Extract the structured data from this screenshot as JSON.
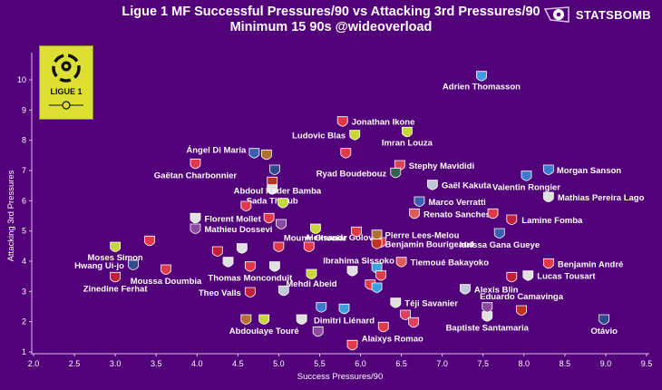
{
  "header": {
    "title_line1": "Ligue 1 MF Successful Pressures/90 vs Attacking 3rd Pressures/90",
    "title_line2": "Minimum 15 90s @wideoverload",
    "brand": "STATSBOMB",
    "league_logo_text": "LIGUE 1"
  },
  "colors": {
    "background": "#520079",
    "axis": "#d9c6ea",
    "text": "#ffffff",
    "logo_yellow": "#dde033"
  },
  "chart_data": {
    "type": "scatter",
    "title": "Ligue 1 MF Successful Pressures/90 vs Attacking 3rd Pressures/90",
    "subtitle": "Minimum 15 90s @wideoverload",
    "xlabel": "Success Pressures/90",
    "ylabel": "Attacking 3rd Pressures",
    "xlim": [
      2.0,
      9.5
    ],
    "ylim": [
      1,
      10.5
    ],
    "xticks": [
      "2.0",
      "2.5",
      "3.0",
      "3.5",
      "4.0",
      "4.5",
      "5.0",
      "5.5",
      "6.0",
      "6.5",
      "7.0",
      "7.5",
      "8.0",
      "8.5",
      "9.0",
      "9.5"
    ],
    "yticks": [
      "1",
      "2",
      "3",
      "4",
      "5",
      "6",
      "7",
      "8",
      "9",
      "10"
    ],
    "grid": false,
    "points": [
      {
        "name": "Adrien Thomasson",
        "x": 7.48,
        "y": 10.1,
        "color": "#3aa0e0",
        "labeled": true
      },
      {
        "name": "Jonathan Ikone",
        "x": 5.78,
        "y": 8.6,
        "color": "#e03a4a",
        "labeled": true
      },
      {
        "name": "Ludovic Blas",
        "x": 5.93,
        "y": 8.15,
        "color": "#c8d63a",
        "labeled": true
      },
      {
        "name": "Imran Louza",
        "x": 6.57,
        "y": 8.25,
        "color": "#c8d63a",
        "labeled": true
      },
      {
        "name": "",
        "x": 5.82,
        "y": 7.55,
        "color": "#e03a4a",
        "labeled": false
      },
      {
        "name": "Stephy Mavididi",
        "x": 6.48,
        "y": 7.15,
        "color": "#e0405a",
        "labeled": true
      },
      {
        "name": "Ryad Boudebouz",
        "x": 6.43,
        "y": 6.9,
        "color": "#3a6050",
        "labeled": true
      },
      {
        "name": "Ángel Di María",
        "x": 4.7,
        "y": 7.55,
        "color": "#3a5fb0",
        "labeled": true
      },
      {
        "name": "",
        "x": 4.85,
        "y": 7.5,
        "color": "#b07030",
        "labeled": false
      },
      {
        "name": "Gaëtan Charbonnier",
        "x": 3.98,
        "y": 7.2,
        "color": "#e03a4a",
        "labeled": true
      },
      {
        "name": "",
        "x": 4.95,
        "y": 7.0,
        "color": "#304a90",
        "labeled": false
      },
      {
        "name": "",
        "x": 4.92,
        "y": 6.6,
        "color": "#c03020",
        "labeled": false
      },
      {
        "name": "Sada Thioub",
        "x": 4.92,
        "y": 6.35,
        "color": "#e0e0e0",
        "labeled": true
      },
      {
        "name": "Gaël Kakuta",
        "x": 6.88,
        "y": 6.5,
        "color": "#c0c8d8",
        "labeled": true
      },
      {
        "name": "Morgan Sanson",
        "x": 8.3,
        "y": 7.0,
        "color": "#3a7ad0",
        "labeled": true
      },
      {
        "name": "Valentin Rongier",
        "x": 8.03,
        "y": 6.8,
        "color": "#3a7ad0",
        "labeled": true
      },
      {
        "name": "Mathias Pereira Lago",
        "x": 8.3,
        "y": 6.1,
        "color": "#e0e0e0",
        "labeled": true
      },
      {
        "name": "Marco Verratti",
        "x": 6.72,
        "y": 5.95,
        "color": "#3a5fb0",
        "labeled": true
      },
      {
        "name": "Renato Sanches",
        "x": 6.66,
        "y": 5.55,
        "color": "#e05a5a",
        "labeled": true
      },
      {
        "name": "",
        "x": 7.62,
        "y": 5.55,
        "color": "#e03a4a",
        "labeled": false
      },
      {
        "name": "Lamine Fomba",
        "x": 7.85,
        "y": 5.35,
        "color": "#c0203a",
        "labeled": true
      },
      {
        "name": "Idrissa Gana Gueye",
        "x": 7.7,
        "y": 4.9,
        "color": "#3a5fb0",
        "labeled": true
      },
      {
        "name": "Aleksandr Golovin",
        "x": 6.25,
        "y": 4.6,
        "color": "#e03a4a",
        "labeled": true
      },
      {
        "name": "Pierre Lees-Melou",
        "x": 6.2,
        "y": 4.85,
        "color": "#b07030",
        "labeled": true
      },
      {
        "name": "Benjamin Bourigeaud",
        "x": 6.2,
        "y": 4.55,
        "color": "#c03020",
        "labeled": true
      },
      {
        "name": "Abdoul Kader Bamba",
        "x": 5.05,
        "y": 5.9,
        "color": "#c8d63a",
        "labeled": true
      },
      {
        "name": "",
        "x": 4.6,
        "y": 5.8,
        "color": "#e03a4a",
        "labeled": false
      },
      {
        "name": "",
        "x": 4.88,
        "y": 5.4,
        "color": "#e03a4a",
        "labeled": false
      },
      {
        "name": "",
        "x": 5.03,
        "y": 5.2,
        "color": "#8a4aa0",
        "labeled": false
      },
      {
        "name": "",
        "x": 5.45,
        "y": 5.05,
        "color": "#c8d63a",
        "labeled": false
      },
      {
        "name": "Florent Mollet",
        "x": 3.98,
        "y": 5.4,
        "color": "#e0e0e0",
        "labeled": true
      },
      {
        "name": "Mathieu Dossevi",
        "x": 3.98,
        "y": 5.05,
        "color": "#8a4aa0",
        "labeled": true
      },
      {
        "name": "Mounir Chouiar",
        "x": 5.95,
        "y": 4.95,
        "color": "#e03a4a",
        "labeled": true
      },
      {
        "name": "",
        "x": 5.37,
        "y": 4.45,
        "color": "#e03a4a",
        "labeled": false
      },
      {
        "name": "",
        "x": 4.25,
        "y": 4.3,
        "color": "#c0203a",
        "labeled": false
      },
      {
        "name": "",
        "x": 4.55,
        "y": 4.4,
        "color": "#e0e0e0",
        "labeled": false
      },
      {
        "name": "",
        "x": 4.38,
        "y": 3.95,
        "color": "#e0e0e0",
        "labeled": false
      },
      {
        "name": "",
        "x": 5.0,
        "y": 4.45,
        "color": "#e03a4a",
        "labeled": false
      },
      {
        "name": "Moses Simon",
        "x": 3.0,
        "y": 4.45,
        "color": "#c8d63a",
        "labeled": true
      },
      {
        "name": "",
        "x": 3.42,
        "y": 4.65,
        "color": "#e03a4a",
        "labeled": false
      },
      {
        "name": "Hwang Ui-jo",
        "x": 3.22,
        "y": 3.85,
        "color": "#304a90",
        "labeled": true
      },
      {
        "name": "Moussa Doumbia",
        "x": 3.62,
        "y": 3.7,
        "color": "#e03a4a",
        "labeled": true
      },
      {
        "name": "Zinedine Ferhat",
        "x": 3.0,
        "y": 3.45,
        "color": "#c0203a",
        "labeled": true
      },
      {
        "name": "Thomas Monconduit",
        "x": 4.65,
        "y": 3.8,
        "color": "#e03a4a",
        "labeled": true
      },
      {
        "name": "",
        "x": 4.95,
        "y": 3.8,
        "color": "#e0e0e0",
        "labeled": false
      },
      {
        "name": "Theo Valls",
        "x": 4.65,
        "y": 2.95,
        "color": "#c0203a",
        "labeled": true
      },
      {
        "name": "Mehdi Abeid",
        "x": 5.4,
        "y": 3.55,
        "color": "#c8d63a",
        "labeled": true
      },
      {
        "name": "",
        "x": 5.06,
        "y": 3.0,
        "color": "#c0c8d8",
        "labeled": false
      },
      {
        "name": "",
        "x": 5.9,
        "y": 3.65,
        "color": "#e0e0e0",
        "labeled": false
      },
      {
        "name": "Ibrahima Sissoko",
        "x": 6.2,
        "y": 3.75,
        "color": "#3aa0e0",
        "labeled": true
      },
      {
        "name": "",
        "x": 6.25,
        "y": 3.5,
        "color": "#e03a4a",
        "labeled": false
      },
      {
        "name": "Tiemoué Bakayoko",
        "x": 6.5,
        "y": 3.95,
        "color": "#e05a5a",
        "labeled": true
      },
      {
        "name": "",
        "x": 6.12,
        "y": 3.2,
        "color": "#e03a4a",
        "labeled": false
      },
      {
        "name": "",
        "x": 6.2,
        "y": 3.1,
        "color": "#3aa0e0",
        "labeled": false
      },
      {
        "name": "Téji Savanier",
        "x": 6.43,
        "y": 2.6,
        "color": "#e0e0e0",
        "labeled": true
      },
      {
        "name": "",
        "x": 5.52,
        "y": 2.45,
        "color": "#3a7ad0",
        "labeled": false
      },
      {
        "name": "Dimitri Liénard",
        "x": 5.8,
        "y": 2.4,
        "color": "#3aa0e0",
        "labeled": true
      },
      {
        "name": "",
        "x": 5.28,
        "y": 2.05,
        "color": "#e0e0e0",
        "labeled": false
      },
      {
        "name": "",
        "x": 5.48,
        "y": 1.65,
        "color": "#8a4aa0",
        "labeled": false
      },
      {
        "name": "",
        "x": 5.9,
        "y": 1.2,
        "color": "#e03a4a",
        "labeled": false
      },
      {
        "name": "Abdoulaye Touré",
        "x": 4.82,
        "y": 2.05,
        "color": "#c8d63a",
        "labeled": true
      },
      {
        "name": "",
        "x": 4.6,
        "y": 2.05,
        "color": "#b07030",
        "labeled": false
      },
      {
        "name": "Alaixys Romao",
        "x": 6.28,
        "y": 1.8,
        "color": "#e03a4a",
        "labeled": true
      },
      {
        "name": "",
        "x": 6.55,
        "y": 2.2,
        "color": "#e0405a",
        "labeled": false
      },
      {
        "name": "",
        "x": 6.65,
        "y": 1.95,
        "color": "#e0405a",
        "labeled": false
      },
      {
        "name": "Alexis Blin",
        "x": 7.28,
        "y": 3.05,
        "color": "#c0c8d8",
        "labeled": true
      },
      {
        "name": "Baptiste Santamaria",
        "x": 7.55,
        "y": 2.15,
        "color": "#e0e0e0",
        "labeled": true
      },
      {
        "name": "",
        "x": 7.55,
        "y": 2.45,
        "color": "#8a4aa0",
        "labeled": false
      },
      {
        "name": "Eduardo Camavinga",
        "x": 7.97,
        "y": 2.35,
        "color": "#c03020",
        "labeled": true
      },
      {
        "name": "Benjamin André",
        "x": 8.3,
        "y": 3.9,
        "color": "#e03a4a",
        "labeled": true
      },
      {
        "name": "Lucas Tousart",
        "x": 8.05,
        "y": 3.5,
        "color": "#e0e0e0",
        "labeled": true
      },
      {
        "name": "",
        "x": 7.85,
        "y": 3.45,
        "color": "#c0203a",
        "labeled": false
      },
      {
        "name": "Otávio",
        "x": 8.98,
        "y": 2.05,
        "color": "#304a90",
        "labeled": true
      }
    ]
  }
}
